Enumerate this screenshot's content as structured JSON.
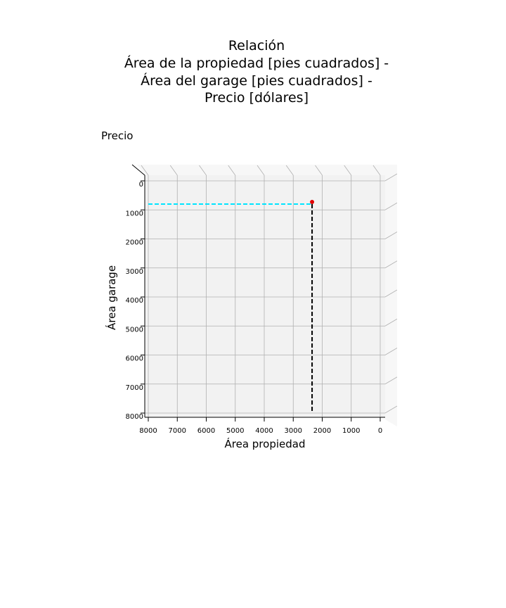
{
  "title": {
    "line1": "Relación",
    "line2": "Área de la propiedad [pies cuadrados] -",
    "line3": "Área del garage [pies cuadrados] -",
    "line4": "Precio [dólares]"
  },
  "colors": {
    "pane": "#f2f2f2",
    "pane_light": "#f7f7f7",
    "grid": "#b0b0b0",
    "horizontal_guide": "#00e5ff",
    "vertical_guide": "#000000",
    "point": "#e00000"
  },
  "chart_data": {
    "type": "scatter",
    "projection": "3d",
    "title": "Relación\nÁrea de la propiedad [pies cuadrados] -\nÁrea del garage [pies cuadrados] -\nPrecio [dólares]",
    "xlabel": "Área propiedad",
    "ylabel": "Área garage",
    "zlabel": "Precio",
    "xlim": [
      8000,
      0
    ],
    "ylim": [
      0,
      8000
    ],
    "xticks": [
      8000,
      7000,
      6000,
      5000,
      4000,
      3000,
      2000,
      1000,
      0
    ],
    "yticks": [
      0,
      1000,
      2000,
      3000,
      4000,
      5000,
      6000,
      7000,
      8000
    ],
    "grid": true,
    "series": [
      {
        "x": [
          2350
        ],
        "y": [
          800
        ],
        "marker": "point",
        "color": "#e00000"
      }
    ],
    "guides": [
      {
        "orientation": "horizontal",
        "style": "dashed",
        "color": "#00e5ff",
        "x": [
          8000,
          2350
        ],
        "y": [
          800,
          800
        ]
      },
      {
        "orientation": "vertical",
        "style": "dashed",
        "color": "#000000",
        "x": [
          2350,
          2350
        ],
        "y": [
          800,
          8000
        ]
      }
    ]
  }
}
